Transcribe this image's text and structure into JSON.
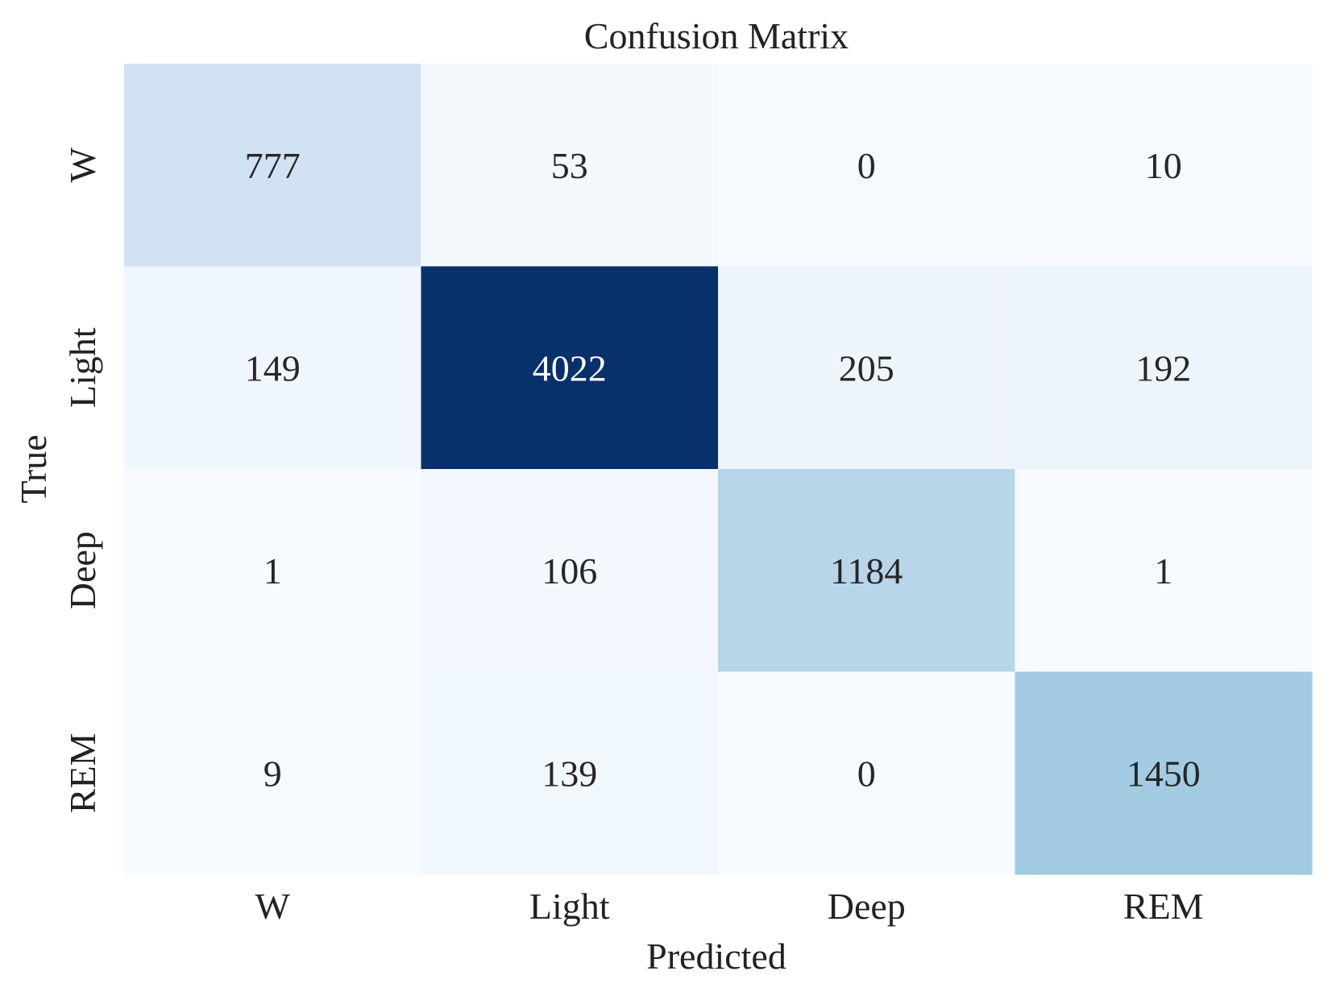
{
  "chart_data": {
    "type": "heatmap",
    "title": "Confusion Matrix",
    "xlabel": "Predicted",
    "ylabel": "True",
    "x_categories": [
      "W",
      "Light",
      "Deep",
      "REM"
    ],
    "y_categories": [
      "W",
      "Light",
      "Deep",
      "REM"
    ],
    "values": [
      [
        777,
        53,
        0,
        10
      ],
      [
        149,
        4022,
        205,
        192
      ],
      [
        1,
        106,
        1184,
        1
      ],
      [
        9,
        139,
        0,
        1450
      ]
    ],
    "colormap": "Blues",
    "colorbar": false
  }
}
